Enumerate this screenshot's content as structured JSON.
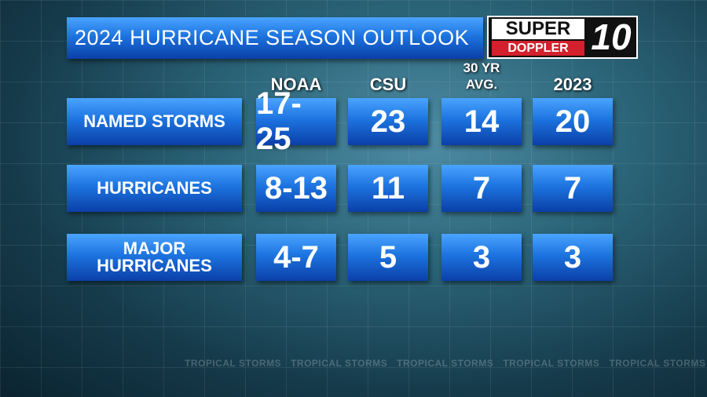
{
  "header": {
    "title": "2024 HURRICANE SEASON OUTLOOK",
    "logo": {
      "line1": "SUPER",
      "line2": "DOPPLER",
      "number": "10"
    }
  },
  "table": {
    "columns": [
      "NOAA",
      "CSU",
      "30 YR AVG.",
      "2023"
    ],
    "rows": [
      {
        "label": "NAMED STORMS",
        "cells": [
          "17-25",
          23,
          14,
          20
        ]
      },
      {
        "label": "HURRICANES",
        "cells": [
          "8-13",
          11,
          7,
          7
        ]
      },
      {
        "label": "MAJOR HURRICANES",
        "cells": [
          "4-7",
          5,
          3,
          3
        ]
      }
    ]
  },
  "background": {
    "ticker": "TROPICAL STORMS"
  }
}
